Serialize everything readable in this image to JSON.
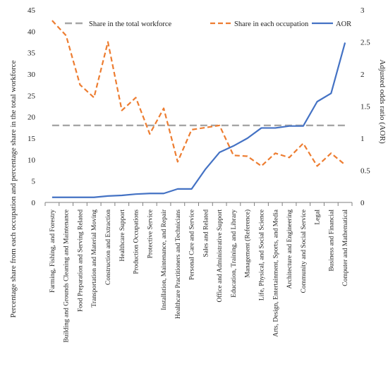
{
  "chart_data": {
    "type": "line",
    "categories": [
      "Farming, Fishing, and Forestry",
      "Building and Grounds Cleaning and Maintenance",
      "Food Preparation and Serving Related",
      "Transportation and Material Moving",
      "Construction and Extraction",
      "Healthcare Support",
      "Production Occupations",
      "Protective Service",
      "Installation, Maintenance, and Repair",
      "Healthcare Practitioners and Technicians",
      "Personal Care and Service",
      "Sales and Related",
      "Office and Administrative Support",
      "Education, Training, and Library",
      "Management (Reference)",
      "Life, Physical, and Social Science",
      "Arts, Design, Entertainment, Sports, and Media",
      "Architecture and Engineering",
      "Community and Social Service",
      "Legal",
      "Business and Financial",
      "Computer and Mathematical"
    ],
    "series": [
      {
        "name": "Share in the total workforce",
        "axis": "left",
        "color": "#a6a6a6",
        "dash": "long-dash",
        "values": [
          18,
          18,
          18,
          18,
          18,
          18,
          18,
          18,
          18,
          18,
          18,
          18,
          18,
          18,
          18,
          18,
          18,
          18,
          18,
          18,
          18,
          18
        ]
      },
      {
        "name": "Share in each occupation",
        "axis": "left",
        "color": "#ed7d31",
        "dash": "dash",
        "values": [
          42.5,
          39,
          27.5,
          24.5,
          37.5,
          21.5,
          24.5,
          16,
          22,
          9.5,
          17,
          17.5,
          18,
          11,
          10.8,
          8.5,
          11.5,
          10.5,
          13.8,
          8.5,
          11.5,
          8.8
        ]
      },
      {
        "name": "AOR",
        "axis": "right",
        "color": "#4472c4",
        "dash": "solid",
        "values": [
          0.08,
          0.08,
          0.08,
          0.08,
          0.1,
          0.11,
          0.13,
          0.14,
          0.14,
          0.21,
          0.21,
          0.52,
          0.78,
          0.88,
          1.0,
          1.16,
          1.16,
          1.19,
          1.19,
          1.57,
          1.7,
          2.49
        ]
      }
    ],
    "y_left": {
      "label": "Percentage share from each occupation and  percentage share in the total workforce",
      "lim": [
        0,
        45
      ],
      "ticks": [
        0,
        5,
        10,
        15,
        20,
        25,
        30,
        35,
        40,
        45
      ],
      "tick_labels": [
        "0",
        "5",
        "10",
        "15",
        "20",
        "25",
        "30",
        "35",
        "40",
        "45"
      ]
    },
    "y_right": {
      "label": "Adjusted odds ratio (AOR)",
      "lim": [
        0,
        3
      ],
      "ticks": [
        0,
        0.5,
        1,
        1.5,
        2,
        2.5,
        3
      ],
      "tick_labels": [
        "0",
        "0.5",
        "1",
        "1.5",
        "2",
        "2.5",
        "3"
      ]
    },
    "legend": {
      "position": "top",
      "entries": [
        "Share in the total workforce",
        "Share in each occupation",
        "AOR"
      ]
    },
    "grid": false
  }
}
